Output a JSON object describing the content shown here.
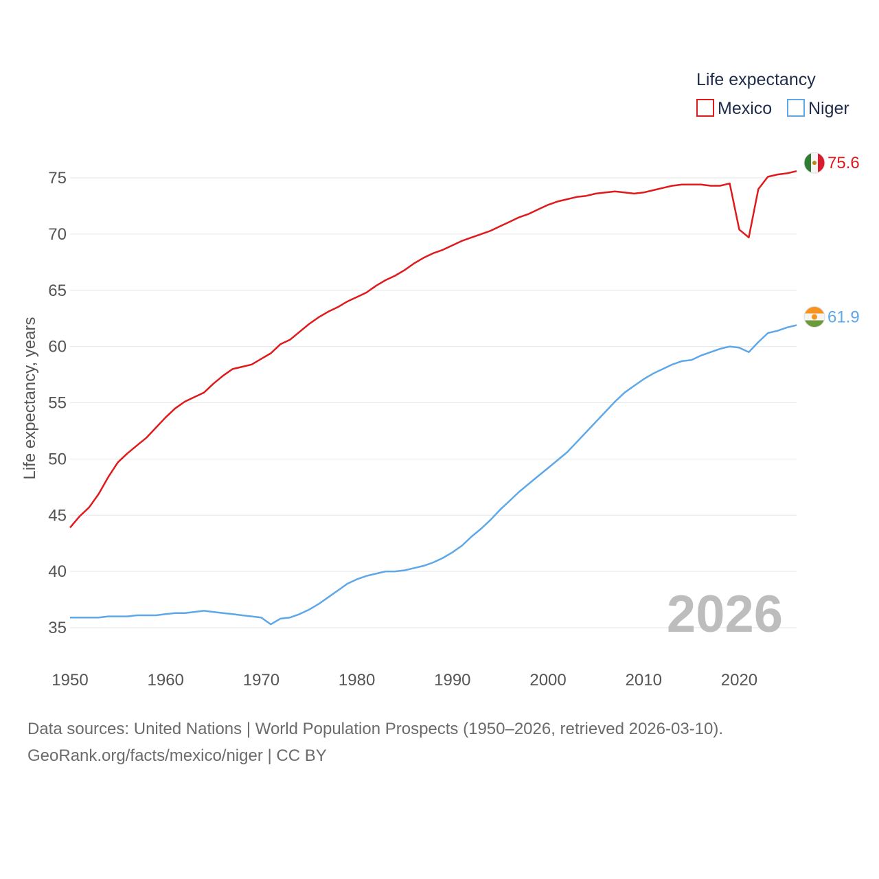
{
  "chart_data": {
    "type": "line",
    "legend_title": "Life expectancy",
    "ylabel": "Life expectancy, years",
    "xlim": [
      1950,
      2026
    ],
    "ylim": [
      32,
      78
    ],
    "yticks": [
      35,
      40,
      45,
      50,
      55,
      60,
      65,
      70,
      75
    ],
    "xticks": [
      1950,
      1960,
      1970,
      1980,
      1990,
      2000,
      2010,
      2020
    ],
    "current_year": "2026",
    "grid": true,
    "legend_position": "top-right",
    "x": [
      1950,
      1951,
      1952,
      1953,
      1954,
      1955,
      1956,
      1957,
      1958,
      1959,
      1960,
      1961,
      1962,
      1963,
      1964,
      1965,
      1966,
      1967,
      1968,
      1969,
      1970,
      1971,
      1972,
      1973,
      1974,
      1975,
      1976,
      1977,
      1978,
      1979,
      1980,
      1981,
      1982,
      1983,
      1984,
      1985,
      1986,
      1987,
      1988,
      1989,
      1990,
      1991,
      1992,
      1993,
      1994,
      1995,
      1996,
      1997,
      1998,
      1999,
      2000,
      2001,
      2002,
      2003,
      2004,
      2005,
      2006,
      2007,
      2008,
      2009,
      2010,
      2011,
      2012,
      2013,
      2014,
      2015,
      2016,
      2017,
      2018,
      2019,
      2020,
      2021,
      2022,
      2023,
      2024,
      2025,
      2026
    ],
    "series": [
      {
        "name": "Mexico",
        "color": "#e0191c",
        "end_label": "75.6",
        "flag": "mexico-flag",
        "values": [
          43.9,
          44.9,
          45.7,
          46.9,
          48.4,
          49.7,
          50.5,
          51.2,
          51.9,
          52.8,
          53.7,
          54.5,
          55.1,
          55.5,
          55.9,
          56.7,
          57.4,
          58.0,
          58.2,
          58.4,
          58.9,
          59.4,
          60.2,
          60.6,
          61.3,
          62.0,
          62.6,
          63.1,
          63.5,
          64.0,
          64.4,
          64.8,
          65.4,
          65.9,
          66.3,
          66.8,
          67.4,
          67.9,
          68.3,
          68.6,
          69.0,
          69.4,
          69.7,
          70.0,
          70.3,
          70.7,
          71.1,
          71.5,
          71.8,
          72.2,
          72.6,
          72.9,
          73.1,
          73.3,
          73.4,
          73.6,
          73.7,
          73.8,
          73.7,
          73.6,
          73.7,
          73.9,
          74.1,
          74.3,
          74.4,
          74.4,
          74.4,
          74.3,
          74.3,
          74.5,
          70.4,
          69.7,
          74.0,
          75.1,
          75.3,
          75.4,
          75.6
        ]
      },
      {
        "name": "Niger",
        "color": "#5ea7e8",
        "end_label": "61.9",
        "flag": "niger-flag",
        "values": [
          35.9,
          35.9,
          35.9,
          35.9,
          36.0,
          36.0,
          36.0,
          36.1,
          36.1,
          36.1,
          36.2,
          36.3,
          36.3,
          36.4,
          36.5,
          36.4,
          36.3,
          36.2,
          36.1,
          36.0,
          35.9,
          35.3,
          35.8,
          35.9,
          36.2,
          36.6,
          37.1,
          37.7,
          38.3,
          38.9,
          39.3,
          39.6,
          39.8,
          40.0,
          40.0,
          40.1,
          40.3,
          40.5,
          40.8,
          41.2,
          41.7,
          42.3,
          43.1,
          43.8,
          44.6,
          45.5,
          46.3,
          47.1,
          47.8,
          48.5,
          49.2,
          49.9,
          50.6,
          51.5,
          52.4,
          53.3,
          54.2,
          55.1,
          55.9,
          56.5,
          57.1,
          57.6,
          58.0,
          58.4,
          58.7,
          58.8,
          59.2,
          59.5,
          59.8,
          60.0,
          59.9,
          59.5,
          60.4,
          61.2,
          61.4,
          61.7,
          61.9
        ]
      }
    ]
  },
  "footer": {
    "source_line": "Data sources: United Nations | World Population Prospects (1950–2026, retrieved 2026-03-10).",
    "credit_line": "GeoRank.org/facts/mexico/niger | CC BY"
  }
}
